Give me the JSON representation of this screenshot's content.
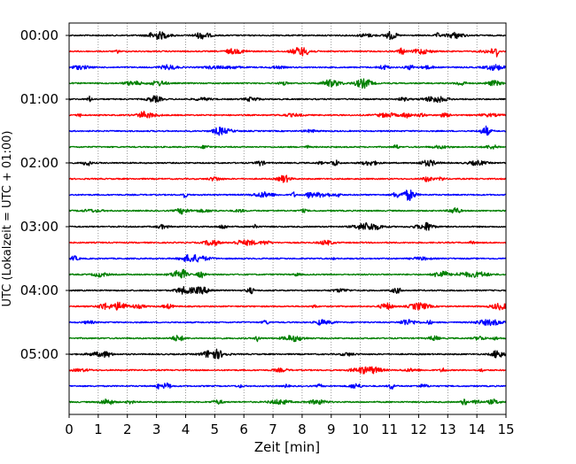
{
  "chart_data": {
    "type": "line",
    "subtype": "helicorder",
    "title": "",
    "xlabel": "Zeit  [min]",
    "ylabel": "UTC (Lokalzeit = UTC + 01:00)",
    "xlim": [
      0,
      15
    ],
    "x_ticks": [
      0,
      1,
      2,
      3,
      4,
      5,
      6,
      7,
      8,
      9,
      10,
      11,
      12,
      13,
      14,
      15
    ],
    "y_tick_labels": [
      "00:00",
      "01:00",
      "02:00",
      "03:00",
      "04:00",
      "05:00"
    ],
    "trace_interval_minutes": 15,
    "trace_colors": [
      "#000000",
      "#ff0000",
      "#0000ff",
      "#008000"
    ],
    "grid": "vertical dotted at each minute",
    "legend": "none",
    "traces": [
      {
        "start": "00:00"
      },
      {
        "start": "00:15"
      },
      {
        "start": "00:30"
      },
      {
        "start": "00:45"
      },
      {
        "start": "01:00"
      },
      {
        "start": "01:15"
      },
      {
        "start": "01:30"
      },
      {
        "start": "01:45"
      },
      {
        "start": "02:00"
      },
      {
        "start": "02:15"
      },
      {
        "start": "02:30"
      },
      {
        "start": "02:45"
      },
      {
        "start": "03:00"
      },
      {
        "start": "03:15"
      },
      {
        "start": "03:30"
      },
      {
        "start": "03:45"
      },
      {
        "start": "04:00"
      },
      {
        "start": "04:15"
      },
      {
        "start": "04:30"
      },
      {
        "start": "04:45"
      },
      {
        "start": "05:00"
      },
      {
        "start": "05:15"
      },
      {
        "start": "05:30"
      },
      {
        "start": "05:45"
      }
    ],
    "notable_events": [
      {
        "trace_start": "00:15",
        "minute": 14.7,
        "description": "large spike"
      }
    ]
  }
}
